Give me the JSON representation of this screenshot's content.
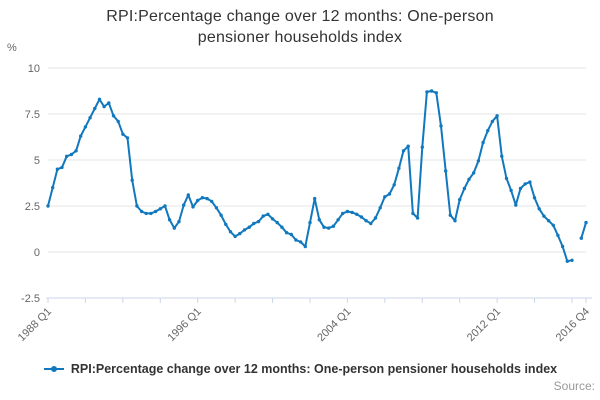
{
  "title": {
    "line1": "RPI:Percentage change over 12 months: One-person",
    "line2": "pensioner households index"
  },
  "y_axis": {
    "unit_label": "%",
    "ticks": [
      10,
      7.5,
      5,
      2.5,
      0,
      -2.5
    ]
  },
  "x_axis": {
    "minor_tick_every_quarters": 8,
    "labeled_ticks": [
      {
        "quarter_index": 0,
        "label": "1988 Q1"
      },
      {
        "quarter_index": 32,
        "label": "1996 Q1"
      },
      {
        "quarter_index": 64,
        "label": "2004 Q1"
      },
      {
        "quarter_index": 96,
        "label": "2012 Q1"
      },
      {
        "quarter_index": 115,
        "label": "2016 Q4"
      }
    ]
  },
  "legend": {
    "label": "RPI:Percentage change over 12 months: One-person pensioner households index"
  },
  "source_label": "Source:",
  "colors": {
    "series": "#1178be",
    "grid": "#e6e6e6",
    "axis": "#ccd6eb",
    "tick_text": "#666666",
    "title_text": "#333333"
  },
  "chart_data": {
    "type": "line",
    "title": "RPI:Percentage change over 12 months: One-person pensioner households index",
    "ylabel": "%",
    "ylim": [
      -2.5,
      10
    ],
    "grid": true,
    "legend_position": "bottom",
    "frequency": "quarterly",
    "start_period": "1988 Q1",
    "end_period": "2016 Q4",
    "note": "one value missing (null) at 2016 Q2 causing a gap in the line",
    "values": [
      2.5,
      3.5,
      4.5,
      4.6,
      5.2,
      5.3,
      5.5,
      6.3,
      6.8,
      7.3,
      7.8,
      8.3,
      7.9,
      8.1,
      7.4,
      7.1,
      6.4,
      6.2,
      3.9,
      2.5,
      2.2,
      2.1,
      2.1,
      2.2,
      2.35,
      2.5,
      1.75,
      1.3,
      1.65,
      2.55,
      3.1,
      2.45,
      2.8,
      2.95,
      2.9,
      2.75,
      2.4,
      2.0,
      1.5,
      1.1,
      0.85,
      1.0,
      1.2,
      1.35,
      1.55,
      1.65,
      1.95,
      2.05,
      1.8,
      1.6,
      1.35,
      1.05,
      0.95,
      0.65,
      0.55,
      0.3,
      1.6,
      2.9,
      1.75,
      1.35,
      1.3,
      1.4,
      1.75,
      2.1,
      2.2,
      2.15,
      2.05,
      1.9,
      1.7,
      1.55,
      1.85,
      2.4,
      3.0,
      3.15,
      3.65,
      4.55,
      5.5,
      5.75,
      2.1,
      1.85,
      5.7,
      8.7,
      8.75,
      8.65,
      6.85,
      4.4,
      2.0,
      1.7,
      2.85,
      3.45,
      3.95,
      4.3,
      4.95,
      5.95,
      6.6,
      7.1,
      7.4,
      5.2,
      4.0,
      3.35,
      2.55,
      3.45,
      3.7,
      3.8,
      2.95,
      2.35,
      1.95,
      1.7,
      1.45,
      0.9,
      0.3,
      -0.5,
      -0.45,
      null,
      0.75,
      1.6
    ]
  }
}
